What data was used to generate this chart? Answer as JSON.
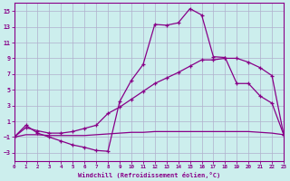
{
  "xlabel": "Windchill (Refroidissement éolien,°C)",
  "background_color": "#cceeed",
  "grid_color": "#b0b0cc",
  "line_color": "#880088",
  "xlim": [
    0,
    23
  ],
  "ylim": [
    -4,
    16
  ],
  "xticks": [
    0,
    1,
    2,
    3,
    4,
    5,
    6,
    7,
    8,
    9,
    10,
    11,
    12,
    13,
    14,
    15,
    16,
    17,
    18,
    19,
    20,
    21,
    22,
    23
  ],
  "yticks": [
    -3,
    -1,
    1,
    3,
    5,
    7,
    9,
    11,
    13,
    15
  ],
  "curve1_x": [
    0,
    1,
    2,
    3,
    4,
    5,
    6,
    7,
    8,
    9,
    10,
    11,
    12,
    13,
    14,
    15,
    16,
    17,
    18,
    19,
    20,
    21,
    22,
    23
  ],
  "curve1_y": [
    -1.0,
    0.5,
    -0.5,
    -1.0,
    -1.5,
    -2.0,
    -2.3,
    -2.7,
    -2.8,
    3.5,
    6.2,
    8.2,
    13.3,
    13.2,
    13.5,
    15.3,
    14.5,
    9.2,
    9.1,
    5.8,
    5.8,
    4.2,
    3.3,
    -0.7
  ],
  "curve2_x": [
    0,
    1,
    2,
    3,
    4,
    5,
    6,
    7,
    8,
    9,
    10,
    11,
    12,
    13,
    14,
    15,
    16,
    17,
    18,
    19,
    20,
    21,
    22,
    23
  ],
  "curve2_y": [
    -1.0,
    0.2,
    -0.2,
    -0.5,
    -0.5,
    -0.3,
    0.1,
    0.5,
    2.0,
    2.8,
    3.8,
    4.8,
    5.8,
    6.5,
    7.2,
    8.0,
    8.8,
    8.8,
    9.0,
    9.0,
    8.5,
    7.8,
    6.8,
    -0.7
  ],
  "curve3_x": [
    0,
    1,
    2,
    3,
    4,
    5,
    6,
    7,
    8,
    9,
    10,
    11,
    12,
    13,
    14,
    15,
    16,
    17,
    18,
    19,
    20,
    21,
    22,
    23
  ],
  "curve3_y": [
    -1.0,
    -0.7,
    -0.7,
    -0.8,
    -0.8,
    -0.8,
    -0.8,
    -0.7,
    -0.6,
    -0.5,
    -0.4,
    -0.4,
    -0.3,
    -0.3,
    -0.3,
    -0.3,
    -0.3,
    -0.3,
    -0.3,
    -0.3,
    -0.3,
    -0.4,
    -0.5,
    -0.7
  ]
}
